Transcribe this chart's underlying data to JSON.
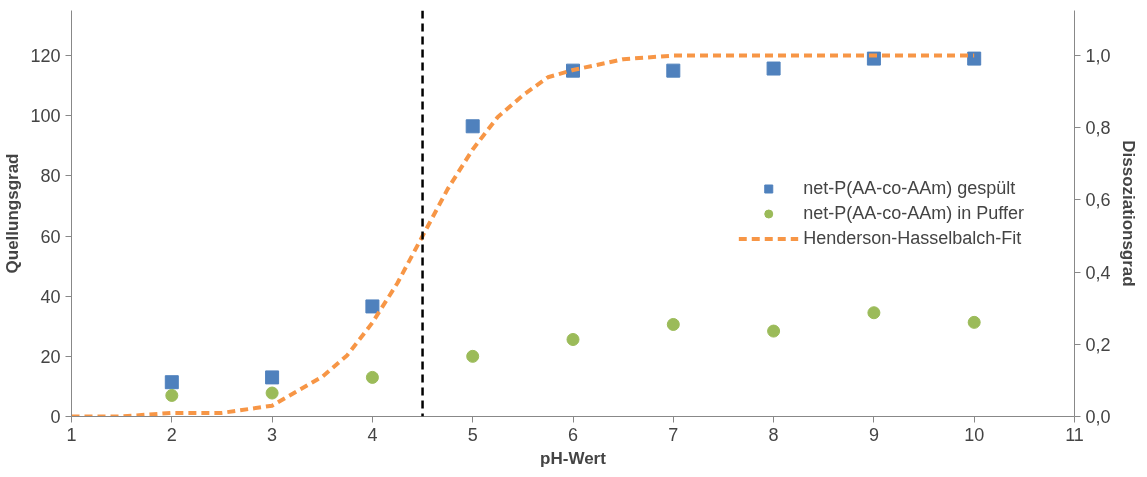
{
  "chart_data": {
    "type": "scatter",
    "xlabel": "pH-Wert",
    "ylabel": "Quellungsgrad",
    "y2label": "Dissoziationsgrad",
    "x": [
      2,
      3,
      4,
      5,
      6,
      7,
      8,
      9,
      10
    ],
    "series": [
      {
        "name": "net-P(AA-co-AAm) gespült",
        "color": "#4f81bd",
        "marker": "square",
        "values": [
          11.4,
          13,
          36.6,
          96.5,
          115,
          115,
          115.7,
          119,
          119
        ]
      },
      {
        "name": "net-P(AA-co-AAm) in Puffer",
        "color": "#9bbb59",
        "marker": "circle",
        "values": [
          7,
          7.8,
          13,
          20,
          25.6,
          30.6,
          28.4,
          34.5,
          31.3
        ]
      },
      {
        "name": "Henderson-Hasselbalch-Fit",
        "color": "#f79646",
        "type": "line",
        "axis": "y2",
        "line_style": "dashed",
        "marker": "none",
        "x": [
          1,
          1.5,
          2,
          2.5,
          3,
          3.25,
          3.5,
          3.75,
          4,
          4.25,
          4.5,
          4.75,
          5,
          5.25,
          5.5,
          5.75,
          6,
          6.5,
          7,
          8,
          9,
          10
        ],
        "values": [
          0.0,
          0.0,
          0.01,
          0.01,
          0.03,
          0.07,
          0.11,
          0.17,
          0.26,
          0.37,
          0.5,
          0.63,
          0.74,
          0.83,
          0.89,
          0.94,
          0.96,
          0.99,
          1.0,
          1.0,
          1.0,
          1.0
        ]
      }
    ],
    "xlim": [
      1,
      11
    ],
    "xticks": [
      1,
      2,
      3,
      4,
      5,
      6,
      7,
      8,
      9,
      10,
      11
    ],
    "ylim": [
      0,
      135
    ],
    "yticks": [
      0,
      20,
      40,
      60,
      80,
      100,
      120
    ],
    "y2lim": [
      0,
      1.125
    ],
    "y2ticks": [
      {
        "value": 0,
        "label": "0,0"
      },
      {
        "value": 0.2,
        "label": "0,2"
      },
      {
        "value": 0.4,
        "label": "0,4"
      },
      {
        "value": 0.6,
        "label": "0,6"
      },
      {
        "value": 0.8,
        "label": "0,8"
      },
      {
        "value": 1.0,
        "label": "1,0"
      }
    ],
    "ref_lines": [
      {
        "axis": "x",
        "value": 4.5,
        "label": null,
        "color": "#000000",
        "line_style": "dashed"
      }
    ],
    "grid": false,
    "legend": "right"
  }
}
